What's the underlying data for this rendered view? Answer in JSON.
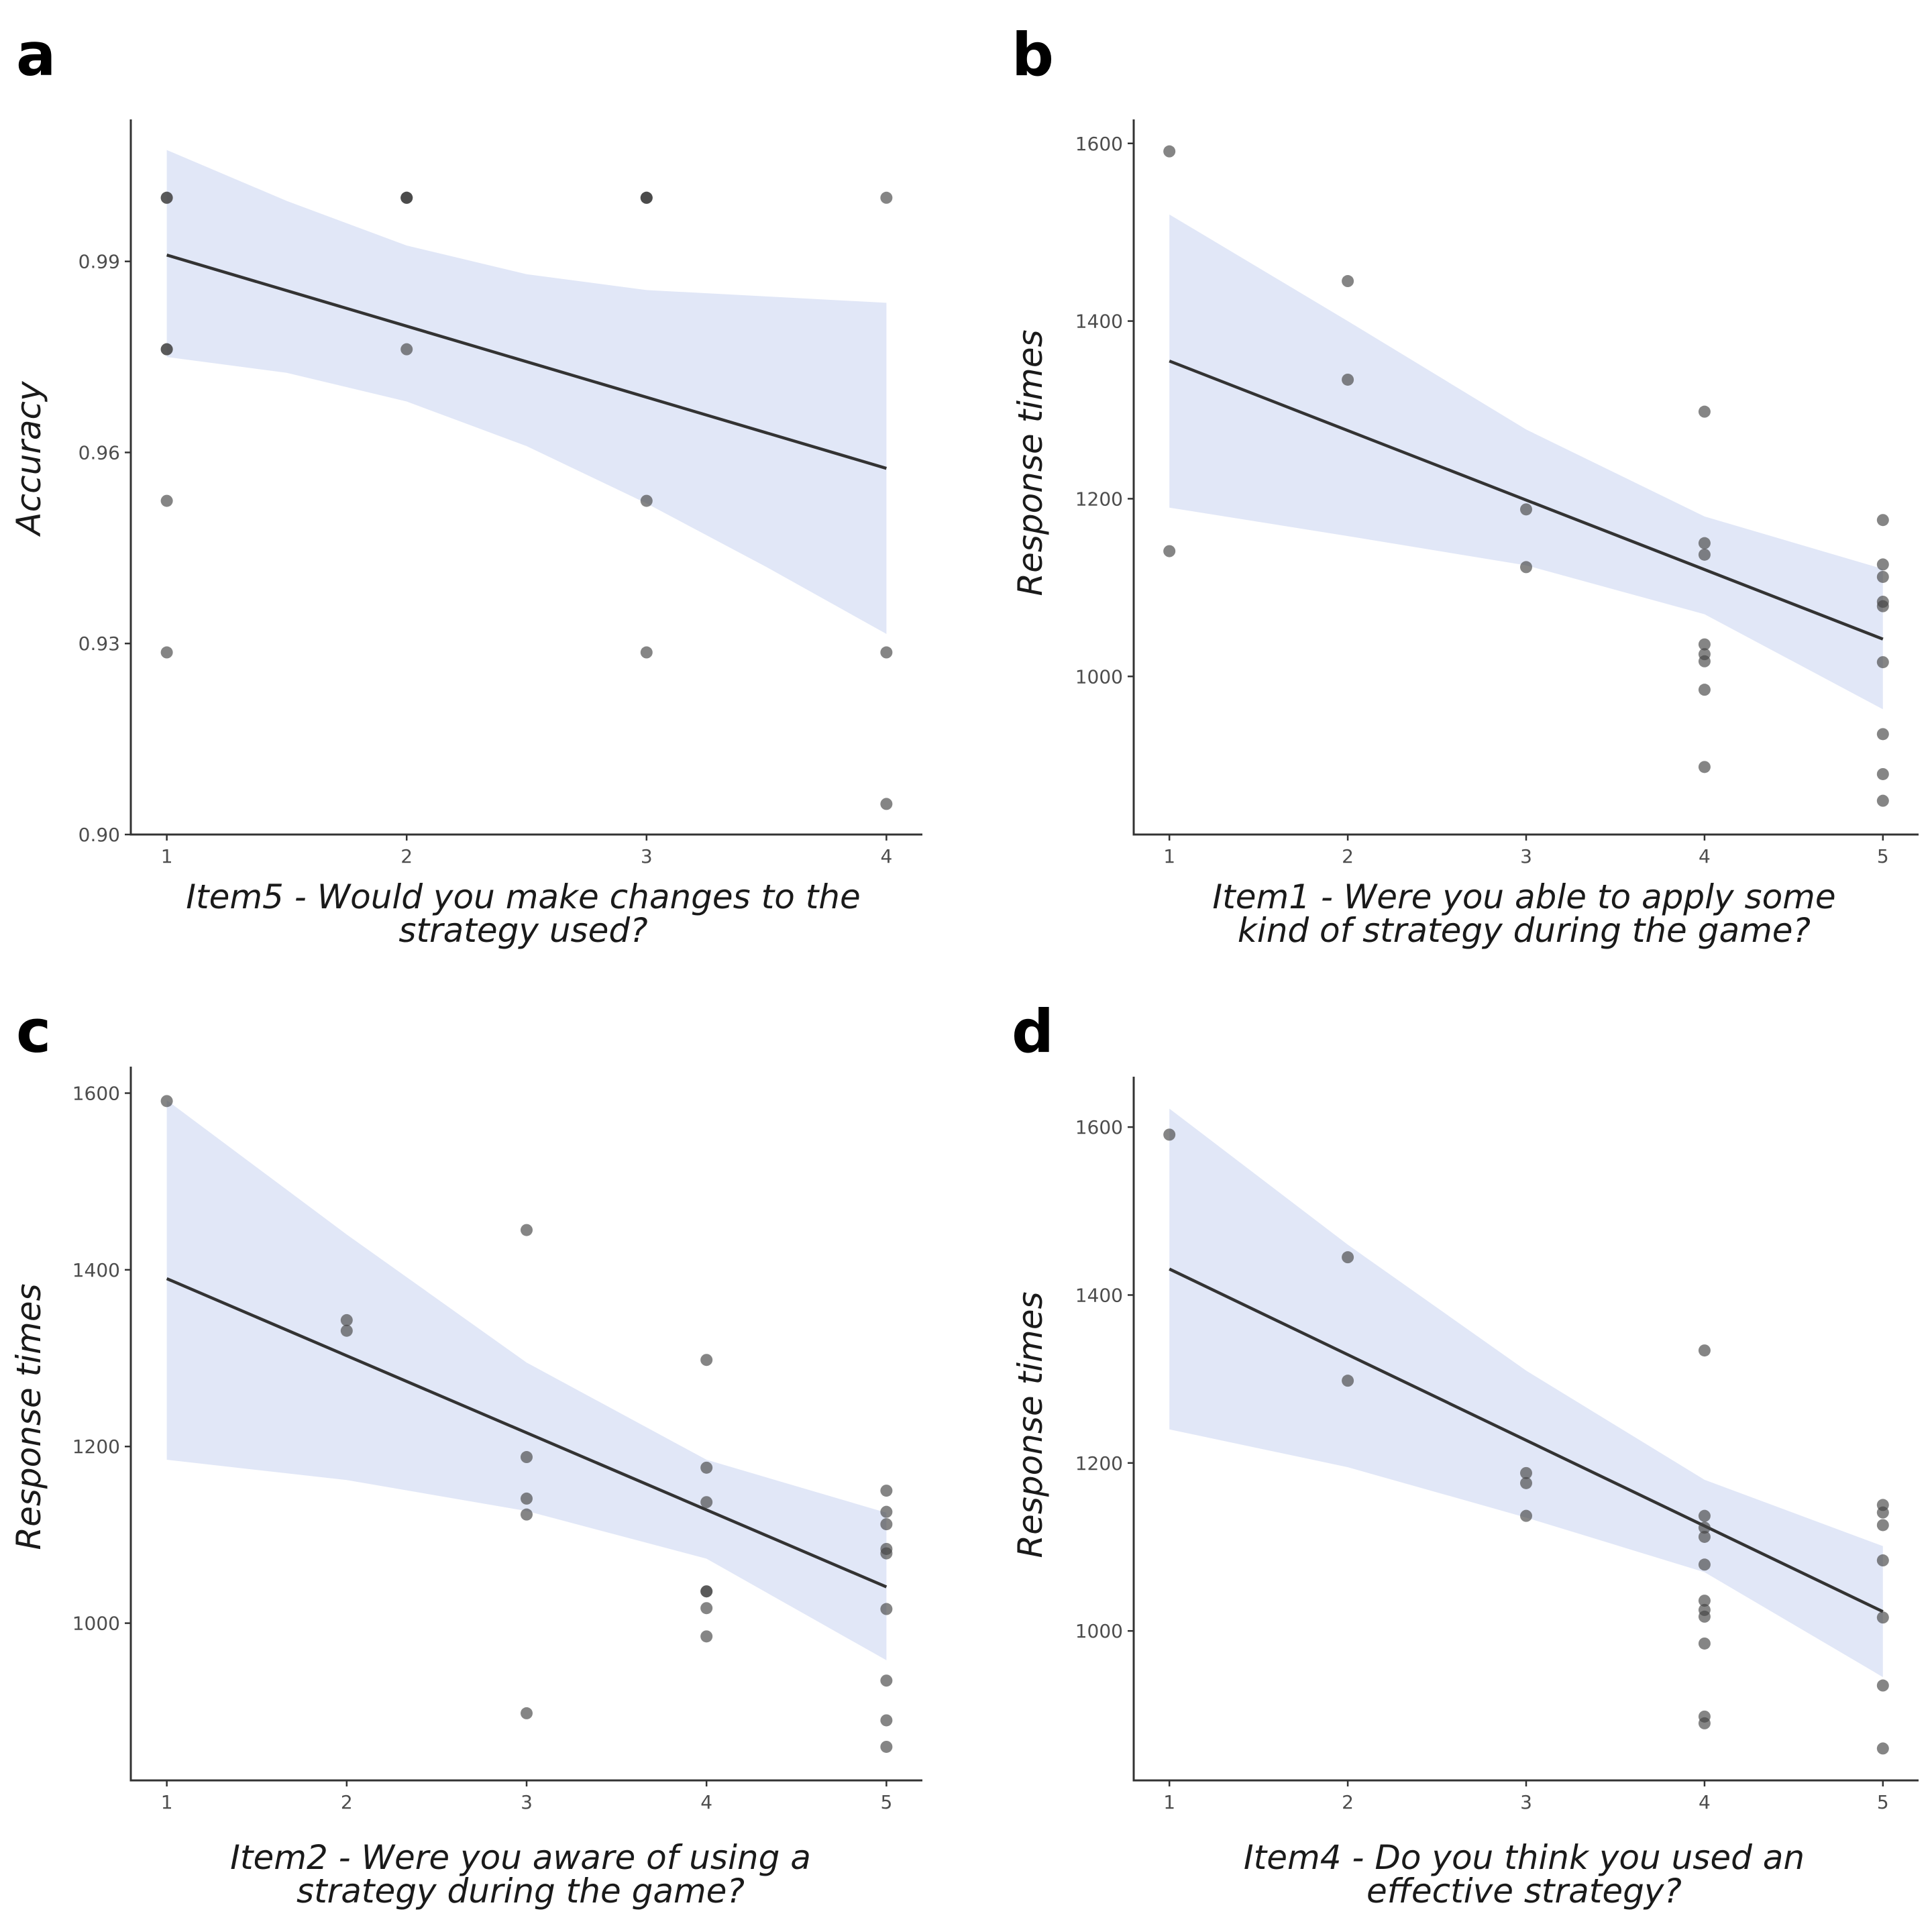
{
  "chart_data": [
    {
      "panel": "a",
      "type": "scatter",
      "title": "",
      "xlabel": [
        "Item5 - Would you make changes to the",
        "strategy used?"
      ],
      "ylabel": "Accuracy",
      "xlim": [
        0.85,
        4.15
      ],
      "ylim": [
        0.9,
        1.0123
      ],
      "xticks": [
        1,
        2,
        3,
        4
      ],
      "yticks": [
        0.9,
        0.93,
        0.96,
        0.99
      ],
      "ytick_labels": [
        "0.90",
        "0.93",
        "0.96",
        "0.99"
      ],
      "points": [
        {
          "x": 1,
          "y": 1.0
        },
        {
          "x": 1,
          "y": 1.0
        },
        {
          "x": 1,
          "y": 0.9762
        },
        {
          "x": 1,
          "y": 0.9762
        },
        {
          "x": 1,
          "y": 0.9524
        },
        {
          "x": 1,
          "y": 0.9286
        },
        {
          "x": 2,
          "y": 1.0
        },
        {
          "x": 2,
          "y": 1.0
        },
        {
          "x": 2,
          "y": 1.0
        },
        {
          "x": 2,
          "y": 0.9762
        },
        {
          "x": 3,
          "y": 1.0
        },
        {
          "x": 3,
          "y": 1.0
        },
        {
          "x": 3,
          "y": 1.0
        },
        {
          "x": 3,
          "y": 0.9524
        },
        {
          "x": 3,
          "y": 0.9286
        },
        {
          "x": 4,
          "y": 1.0
        },
        {
          "x": 4,
          "y": 0.9286
        },
        {
          "x": 4,
          "y": 0.9048
        }
      ],
      "fit": {
        "x": [
          1,
          4
        ],
        "y": [
          0.991,
          0.9575
        ]
      },
      "band": {
        "x": [
          1,
          1.5,
          2,
          2.5,
          3,
          3.5,
          4
        ],
        "lower": [
          0.975,
          0.9725,
          0.968,
          0.961,
          0.952,
          0.942,
          0.9315
        ],
        "upper": [
          1.0075,
          0.9995,
          0.9925,
          0.988,
          0.9855,
          0.9845,
          0.9835
        ]
      }
    },
    {
      "panel": "b",
      "type": "scatter",
      "title": "",
      "xlabel": [
        "Item1 - Were you able to apply some",
        "kind of strategy during the game?"
      ],
      "ylabel": "Response times",
      "xlim": [
        0.8,
        5.2
      ],
      "ylim": [
        822,
        1627
      ],
      "xticks": [
        1,
        2,
        3,
        4,
        5
      ],
      "yticks": [
        1000,
        1200,
        1400,
        1600
      ],
      "ytick_labels": [
        "1000",
        "1200",
        "1400",
        "1600"
      ],
      "points": [
        {
          "x": 1,
          "y": 1591
        },
        {
          "x": 1,
          "y": 1141
        },
        {
          "x": 2,
          "y": 1445
        },
        {
          "x": 2,
          "y": 1334
        },
        {
          "x": 3,
          "y": 1188
        },
        {
          "x": 3,
          "y": 1123
        },
        {
          "x": 4,
          "y": 1298
        },
        {
          "x": 4,
          "y": 1150
        },
        {
          "x": 4,
          "y": 1137
        },
        {
          "x": 4,
          "y": 1036
        },
        {
          "x": 4,
          "y": 1025
        },
        {
          "x": 4,
          "y": 1017
        },
        {
          "x": 4,
          "y": 985
        },
        {
          "x": 4,
          "y": 898
        },
        {
          "x": 5,
          "y": 1176
        },
        {
          "x": 5,
          "y": 1126
        },
        {
          "x": 5,
          "y": 1112
        },
        {
          "x": 5,
          "y": 1084
        },
        {
          "x": 5,
          "y": 1079
        },
        {
          "x": 5,
          "y": 1016
        },
        {
          "x": 5,
          "y": 935
        },
        {
          "x": 5,
          "y": 890
        },
        {
          "x": 5,
          "y": 860
        }
      ],
      "fit": {
        "x": [
          1,
          5
        ],
        "y": [
          1355,
          1042
        ]
      },
      "band": {
        "x": [
          1,
          2,
          3,
          4,
          5
        ],
        "lower": [
          1190,
          1158,
          1125,
          1070,
          963
        ],
        "upper": [
          1520,
          1400,
          1278,
          1180,
          1121
        ]
      }
    },
    {
      "panel": "c",
      "type": "scatter",
      "title": "",
      "xlabel": [
        "Item2 - Were you aware of using a",
        "strategy during the game?"
      ],
      "ylabel": "Response times",
      "xlim": [
        0.8,
        5.2
      ],
      "ylim": [
        822,
        1630
      ],
      "xticks": [
        1,
        2,
        3,
        4,
        5
      ],
      "yticks": [
        1000,
        1200,
        1400,
        1600
      ],
      "ytick_labels": [
        "1000",
        "1200",
        "1400",
        "1600"
      ],
      "points": [
        {
          "x": 1,
          "y": 1591
        },
        {
          "x": 2,
          "y": 1343
        },
        {
          "x": 2,
          "y": 1331
        },
        {
          "x": 3,
          "y": 1445
        },
        {
          "x": 3,
          "y": 1188
        },
        {
          "x": 3,
          "y": 1141
        },
        {
          "x": 3,
          "y": 1123
        },
        {
          "x": 3,
          "y": 898
        },
        {
          "x": 4,
          "y": 1298
        },
        {
          "x": 4,
          "y": 1176
        },
        {
          "x": 4,
          "y": 1137
        },
        {
          "x": 4,
          "y": 1036
        },
        {
          "x": 4,
          "y": 1036
        },
        {
          "x": 4,
          "y": 1017
        },
        {
          "x": 4,
          "y": 985
        },
        {
          "x": 5,
          "y": 1150
        },
        {
          "x": 5,
          "y": 1126
        },
        {
          "x": 5,
          "y": 1112
        },
        {
          "x": 5,
          "y": 1084
        },
        {
          "x": 5,
          "y": 1079
        },
        {
          "x": 5,
          "y": 1016
        },
        {
          "x": 5,
          "y": 935
        },
        {
          "x": 5,
          "y": 890
        },
        {
          "x": 5,
          "y": 860
        }
      ],
      "fit": {
        "x": [
          1,
          5
        ],
        "y": [
          1390,
          1041
        ]
      },
      "band": {
        "x": [
          1,
          2,
          3,
          4,
          5
        ],
        "lower": [
          1185,
          1162,
          1127,
          1073,
          958
        ],
        "upper": [
          1592,
          1440,
          1295,
          1185,
          1125
        ]
      }
    },
    {
      "panel": "d",
      "type": "scatter",
      "title": "",
      "xlabel": [
        "Item4 - Do you think you used an",
        "effective strategy?"
      ],
      "ylabel": "Response times",
      "xlim": [
        0.8,
        5.2
      ],
      "ylim": [
        822,
        1660
      ],
      "xticks": [
        1,
        2,
        3,
        4,
        5
      ],
      "yticks": [
        1000,
        1200,
        1400,
        1600
      ],
      "ytick_labels": [
        "1000",
        "1200",
        "1400",
        "1600"
      ],
      "points": [
        {
          "x": 1,
          "y": 1591
        },
        {
          "x": 2,
          "y": 1445
        },
        {
          "x": 2,
          "y": 1298
        },
        {
          "x": 3,
          "y": 1188
        },
        {
          "x": 3,
          "y": 1176
        },
        {
          "x": 3,
          "y": 1137
        },
        {
          "x": 4,
          "y": 1334
        },
        {
          "x": 4,
          "y": 1137
        },
        {
          "x": 4,
          "y": 1123
        },
        {
          "x": 4,
          "y": 1112
        },
        {
          "x": 4,
          "y": 1079
        },
        {
          "x": 4,
          "y": 1036
        },
        {
          "x": 4,
          "y": 1025
        },
        {
          "x": 4,
          "y": 1017
        },
        {
          "x": 4,
          "y": 985
        },
        {
          "x": 4,
          "y": 898
        },
        {
          "x": 4,
          "y": 890
        },
        {
          "x": 5,
          "y": 1150
        },
        {
          "x": 5,
          "y": 1141
        },
        {
          "x": 5,
          "y": 1126
        },
        {
          "x": 5,
          "y": 1084
        },
        {
          "x": 5,
          "y": 1016
        },
        {
          "x": 5,
          "y": 935
        },
        {
          "x": 5,
          "y": 860
        }
      ],
      "fit": {
        "x": [
          1,
          5
        ],
        "y": [
          1431,
          1023
        ]
      },
      "band": {
        "x": [
          1,
          2,
          3,
          4,
          5
        ],
        "lower": [
          1240,
          1195,
          1135,
          1070,
          945
        ],
        "upper": [
          1622,
          1460,
          1310,
          1180,
          1101
        ]
      }
    }
  ]
}
